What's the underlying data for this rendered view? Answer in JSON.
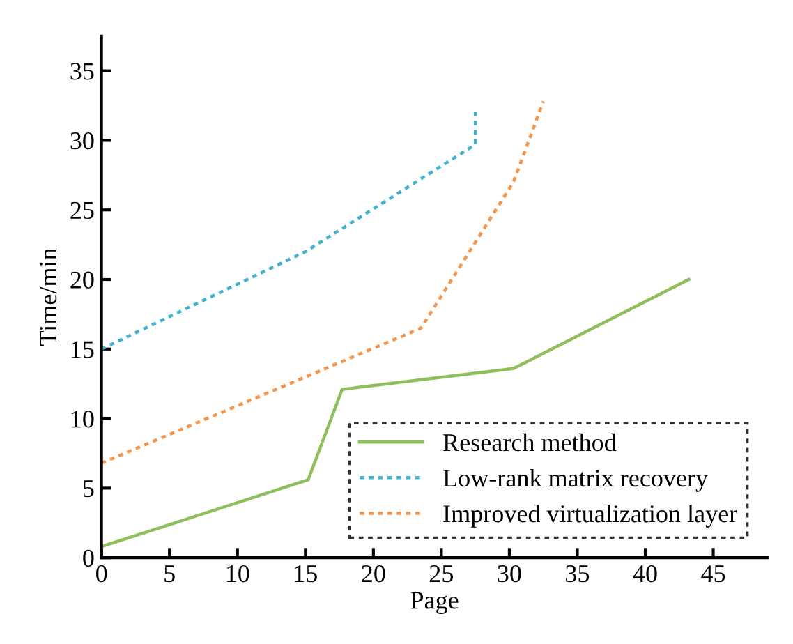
{
  "chart_data": {
    "type": "line",
    "xlabel": "Page",
    "ylabel": "Time/min",
    "xlim": [
      0,
      49
    ],
    "ylim": [
      0,
      37.5
    ],
    "xticks": [
      0,
      5,
      10,
      15,
      20,
      25,
      30,
      35,
      40,
      45
    ],
    "yticks": [
      0,
      5,
      10,
      15,
      20,
      25,
      30,
      35
    ],
    "grid": false,
    "legend": "bottom right",
    "marker": "none",
    "series": [
      {
        "name": "Research method",
        "color": "#8fbf5a",
        "line_style": "solid",
        "x": [
          0,
          15.2,
          17.7,
          30.3,
          43.2
        ],
        "values": [
          0.8,
          5.6,
          12.1,
          13.6,
          20
        ]
      },
      {
        "name": "Low-rank matrix recovery",
        "color": "#3fb3d0",
        "line_style": "dotted",
        "x": [
          0,
          15,
          27.5,
          27.5
        ],
        "values": [
          15,
          22,
          29.7,
          32.3
        ]
      },
      {
        "name": "Improved virtualization layer",
        "color": "#f4954a",
        "line_style": "dotted",
        "x": [
          0,
          23.5,
          30.3,
          32.5
        ],
        "values": [
          6.8,
          16.5,
          27,
          32.8
        ]
      }
    ]
  }
}
